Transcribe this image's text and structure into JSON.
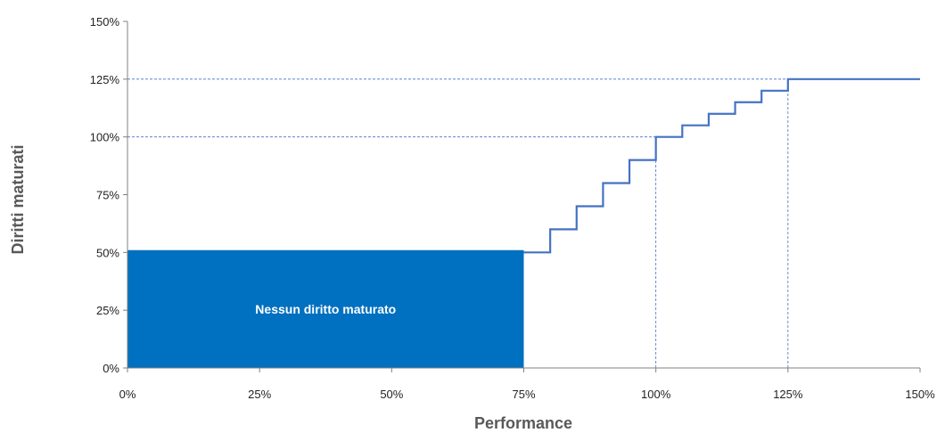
{
  "chart_data": {
    "type": "line",
    "title": "",
    "xlabel": "Performance",
    "ylabel": "Diritti maturati",
    "xlim": [
      0,
      150
    ],
    "ylim": [
      0,
      150
    ],
    "x_ticks": [
      "0%",
      "25%",
      "50%",
      "75%",
      "100%",
      "125%",
      "150%"
    ],
    "y_ticks": [
      "0%",
      "25%",
      "50%",
      "75%",
      "100%",
      "125%",
      "150%"
    ],
    "grid": false,
    "legend": "none",
    "region": {
      "label": "Nessun diritto maturato",
      "x": [
        0,
        75
      ],
      "y": [
        0,
        51
      ],
      "color": "#0070C0"
    },
    "series": [
      {
        "color": "#4472C4",
        "step": true,
        "x": [
          75,
          80,
          85,
          90,
          95,
          100,
          105,
          110,
          115,
          120,
          125,
          150
        ],
        "y": [
          50,
          60,
          70,
          80,
          90,
          100,
          105,
          110,
          115,
          120,
          125,
          125
        ]
      }
    ],
    "reference_lines": [
      {
        "axis": "y",
        "value": 100,
        "from_x": 0,
        "to_x": 100
      },
      {
        "axis": "y",
        "value": 125,
        "from_x": 0,
        "to_x": 150
      },
      {
        "axis": "x",
        "value": 100,
        "from_y": 0,
        "to_y": 100
      },
      {
        "axis": "x",
        "value": 125,
        "from_y": 0,
        "to_y": 125
      }
    ]
  }
}
